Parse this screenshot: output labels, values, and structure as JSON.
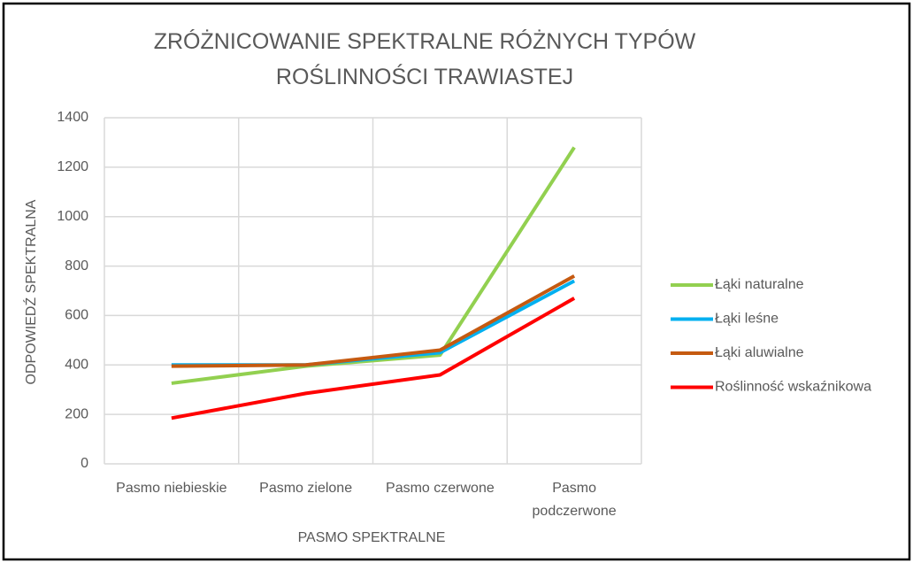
{
  "chart_data": {
    "type": "line",
    "title": "ZRÓŻNICOWANIE SPEKTRALNE RÓŻNYCH TYPÓW ROŚLINNOŚCI TRAWIASTEJ",
    "x_label": "PASMO SPEKTRALNE",
    "y_label": "ODPOWIEDŹ SPEKTRALNA",
    "categories": [
      "Pasmo niebieskie",
      "Pasmo zielone",
      "Pasmo czerwone",
      "Pasmo podczerwone"
    ],
    "series": [
      {
        "name": "Łąki naturalne",
        "color": "#92d050",
        "values": [
          326,
          395,
          440,
          1280
        ]
      },
      {
        "name": "Łąki leśne",
        "color": "#00b0f0",
        "values": [
          400,
          400,
          450,
          740
        ]
      },
      {
        "name": "Łąki aluwialne",
        "color": "#c55a11",
        "values": [
          395,
          400,
          460,
          760
        ]
      },
      {
        "name": "Roślinność wskaźnikowa",
        "color": "#ff0000",
        "values": [
          185,
          285,
          360,
          670
        ]
      }
    ],
    "ylim": [
      0,
      1400
    ],
    "yticks": [
      0,
      200,
      400,
      600,
      800,
      1000,
      1200,
      1400
    ],
    "grid": true,
    "legend": "right"
  }
}
